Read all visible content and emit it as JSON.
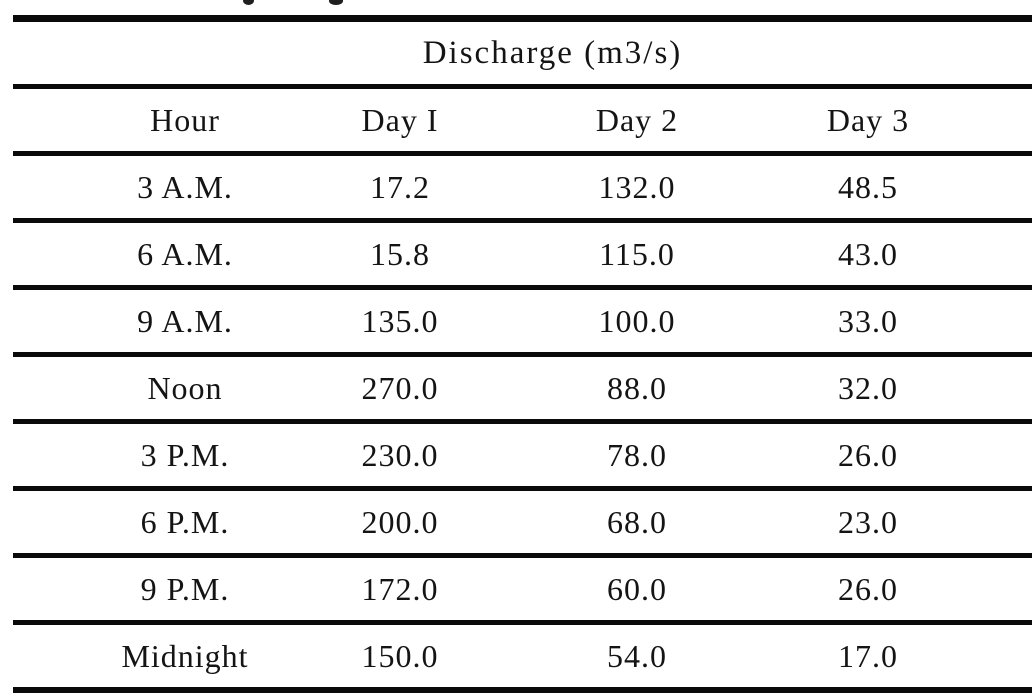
{
  "page": {
    "background_color": "#ffffff",
    "rule_color": "#0a0a0a",
    "text_color": "#141414"
  },
  "table": {
    "title": "Discharge (m3/s)",
    "columns": [
      "Hour",
      "Day I",
      "Day 2",
      "Day 3"
    ],
    "rows": [
      [
        "3 A.M.",
        "17.2",
        "132.0",
        "48.5"
      ],
      [
        "6 A.M.",
        "15.8",
        "115.0",
        "43.0"
      ],
      [
        "9 A.M.",
        "135.0",
        "100.0",
        "33.0"
      ],
      [
        "Noon",
        "270.0",
        "88.0",
        "32.0"
      ],
      [
        "3 P.M.",
        "230.0",
        "78.0",
        "26.0"
      ],
      [
        "6 P.M.",
        "200.0",
        "68.0",
        "23.0"
      ],
      [
        "9 P.M.",
        "172.0",
        "60.0",
        "26.0"
      ],
      [
        "Midnight",
        "150.0",
        "54.0",
        "17.0"
      ]
    ]
  }
}
